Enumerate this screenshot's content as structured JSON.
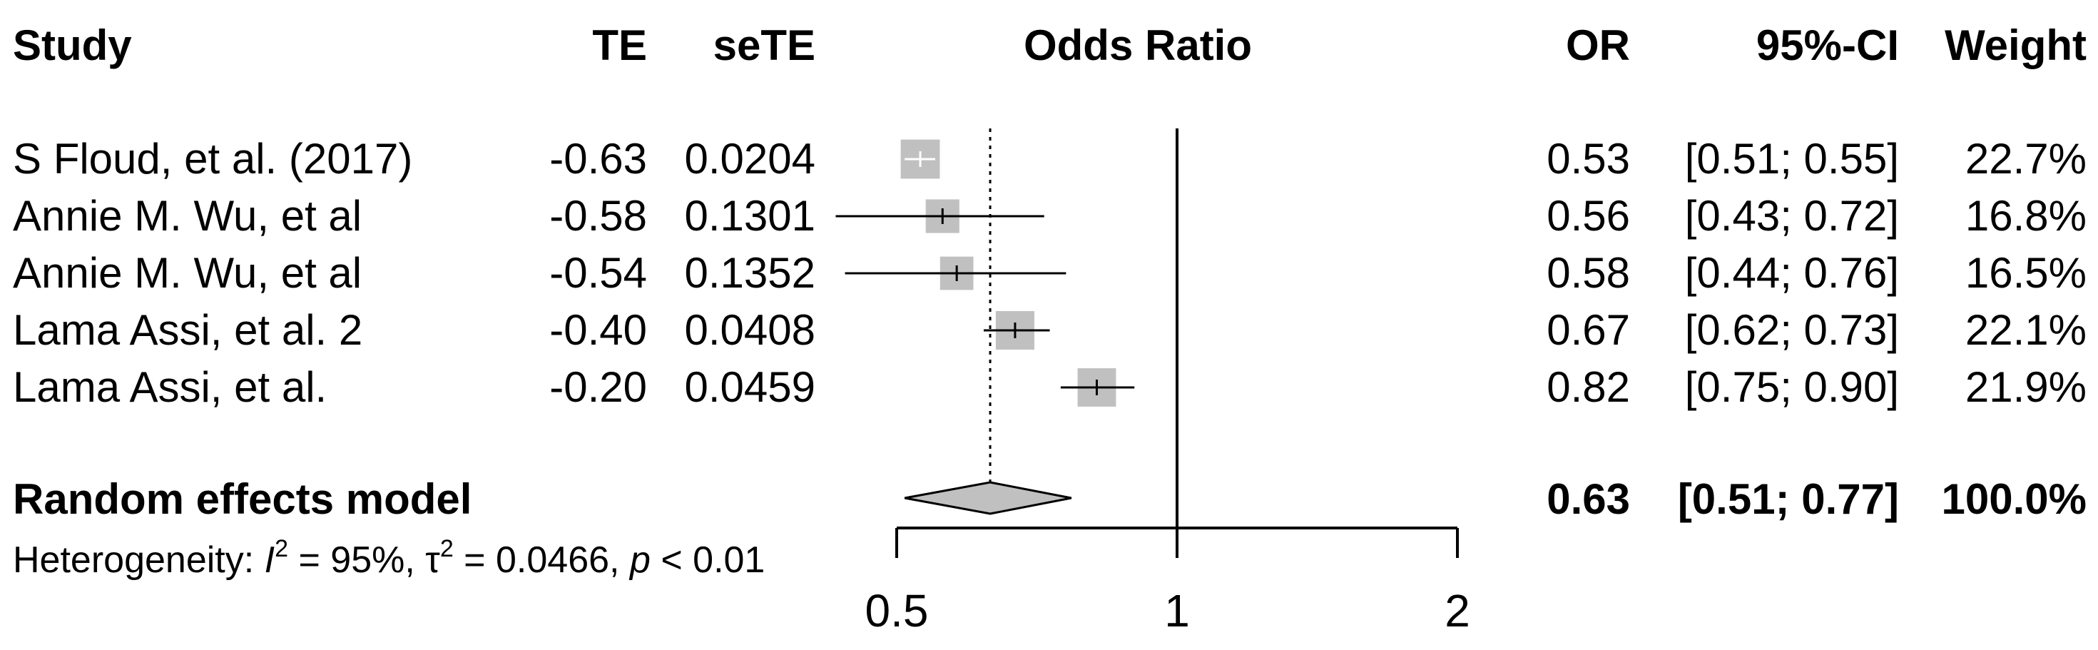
{
  "headers": {
    "study": "Study",
    "te": "TE",
    "sete": "seTE",
    "plot": "Odds Ratio",
    "or": "OR",
    "ci": "95%-CI",
    "weight": "Weight"
  },
  "pooled": {
    "label": "Random effects model",
    "or": "0.63",
    "ci": "[0.51; 0.77]",
    "weight": "100.0%"
  },
  "heterogeneity": {
    "prefix": "Heterogeneity: ",
    "i2": "95%",
    "tau2": "0.0466",
    "p": "< 0.01"
  },
  "chart_data": {
    "type": "forest",
    "scale": "log",
    "xlim": [
      0.5,
      2
    ],
    "ticks": [
      "0.5",
      "1",
      "2"
    ],
    "reference_line": 1,
    "pooled_line": 0.63,
    "pooled": {
      "or": 0.63,
      "lower": 0.51,
      "upper": 0.77
    },
    "studies": [
      {
        "name": "S Floud, et al. (2017)",
        "te": "-0.63",
        "sete": "0.0204",
        "or": 0.53,
        "lower": 0.51,
        "upper": 0.55,
        "or_text": "0.53",
        "ci_text": "[0.51; 0.55]",
        "weight": "22.7%",
        "weight_value": 22.7
      },
      {
        "name": "Annie M. Wu, et al",
        "te": "-0.58",
        "sete": "0.1301",
        "or": 0.56,
        "lower": 0.43,
        "upper": 0.72,
        "or_text": "0.56",
        "ci_text": "[0.43; 0.72]",
        "weight": "16.8%",
        "weight_value": 16.8
      },
      {
        "name": "Annie M. Wu, et al",
        "te": "-0.54",
        "sete": "0.1352",
        "or": 0.58,
        "lower": 0.44,
        "upper": 0.76,
        "or_text": "0.58",
        "ci_text": "[0.44; 0.76]",
        "weight": "16.5%",
        "weight_value": 16.5
      },
      {
        "name": "Lama Assi, et al. 2",
        "te": "-0.40",
        "sete": "0.0408",
        "or": 0.67,
        "lower": 0.62,
        "upper": 0.73,
        "or_text": "0.67",
        "ci_text": "[0.62; 0.73]",
        "weight": "22.1%",
        "weight_value": 22.1
      },
      {
        "name": "Lama Assi, et al.",
        "te": "-0.20",
        "sete": "0.0459",
        "or": 0.82,
        "lower": 0.75,
        "upper": 0.9,
        "or_text": "0.82",
        "ci_text": "[0.75; 0.90]",
        "weight": "21.9%",
        "weight_value": 21.9
      }
    ]
  }
}
